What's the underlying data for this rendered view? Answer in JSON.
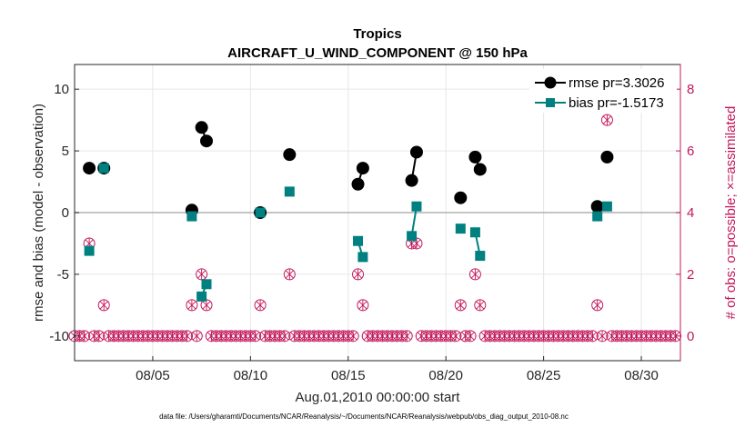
{
  "chart_data": {
    "type": "line",
    "title": "Tropics",
    "subtitle": "AIRCRAFT_U_WIND_COMPONENT @ 150 hPa",
    "xlabel": "Aug.01,2010 00:00:00 start",
    "ylabel": "rmse and bias (model - observation)",
    "y2label": "# of obs: o=possible; ×=assimilated",
    "xlim": [
      1,
      32
    ],
    "ylim": [
      -12,
      12
    ],
    "y2lim": [
      -0.8,
      8.8
    ],
    "grid": true,
    "legend_position": "top-right",
    "xticks": [
      {
        "value": 5,
        "label": "08/05"
      },
      {
        "value": 10,
        "label": "08/10"
      },
      {
        "value": 15,
        "label": "08/15"
      },
      {
        "value": 20,
        "label": "08/20"
      },
      {
        "value": 25,
        "label": "08/25"
      },
      {
        "value": 30,
        "label": "08/30"
      }
    ],
    "yticks": [
      -10,
      -5,
      0,
      5,
      10
    ],
    "y2ticks": [
      0,
      2,
      4,
      6,
      8
    ],
    "series": [
      {
        "name": "rmse pr=3.3026",
        "color": "#000000",
        "marker": "circle",
        "segments": [
          [
            [
              1.75,
              3.6
            ]
          ],
          [
            [
              2.5,
              3.6
            ]
          ],
          [
            [
              7.0,
              0.2
            ]
          ],
          [
            [
              7.5,
              6.9
            ],
            [
              7.75,
              5.8
            ]
          ],
          [
            [
              10.5,
              0.0
            ]
          ],
          [
            [
              12.0,
              4.7
            ]
          ],
          [
            [
              15.5,
              2.3
            ],
            [
              15.75,
              3.6
            ]
          ],
          [
            [
              18.25,
              2.6
            ],
            [
              18.5,
              4.9
            ]
          ],
          [
            [
              20.75,
              1.2
            ]
          ],
          [
            [
              21.5,
              4.5
            ],
            [
              21.75,
              3.5
            ]
          ],
          [
            [
              27.75,
              0.5
            ]
          ],
          [
            [
              28.25,
              4.5
            ]
          ]
        ]
      },
      {
        "name": "bias pr=-1.5173",
        "color": "#008080",
        "marker": "square",
        "segments": [
          [
            [
              1.75,
              -3.1
            ]
          ],
          [
            [
              2.5,
              3.6
            ]
          ],
          [
            [
              7.0,
              -0.3
            ]
          ],
          [
            [
              7.5,
              -6.8
            ],
            [
              7.75,
              -5.8
            ]
          ],
          [
            [
              10.5,
              0.0
            ]
          ],
          [
            [
              12.0,
              1.7
            ]
          ],
          [
            [
              15.5,
              -2.3
            ],
            [
              15.75,
              -3.6
            ]
          ],
          [
            [
              18.25,
              -1.9
            ],
            [
              18.5,
              0.5
            ]
          ],
          [
            [
              20.75,
              -1.3
            ]
          ],
          [
            [
              21.5,
              -1.6
            ],
            [
              21.75,
              -3.5
            ]
          ],
          [
            [
              27.75,
              -0.3
            ]
          ],
          [
            [
              28.25,
              0.5
            ]
          ]
        ]
      }
    ],
    "obs_possible": [
      [
        1.0,
        0
      ],
      [
        1.25,
        0
      ],
      [
        1.5,
        0
      ],
      [
        1.75,
        3
      ],
      [
        2.0,
        0
      ],
      [
        2.25,
        0
      ],
      [
        2.5,
        1
      ],
      [
        2.75,
        0
      ],
      [
        3.0,
        0
      ],
      [
        3.25,
        0
      ],
      [
        3.5,
        0
      ],
      [
        3.75,
        0
      ],
      [
        4.0,
        0
      ],
      [
        4.25,
        0
      ],
      [
        4.5,
        0
      ],
      [
        4.75,
        0
      ],
      [
        5.0,
        0
      ],
      [
        5.25,
        0
      ],
      [
        5.5,
        0
      ],
      [
        5.75,
        0
      ],
      [
        6.0,
        0
      ],
      [
        6.25,
        0
      ],
      [
        6.5,
        0
      ],
      [
        6.75,
        0
      ],
      [
        7.0,
        1
      ],
      [
        7.25,
        0
      ],
      [
        7.5,
        2
      ],
      [
        7.75,
        1
      ],
      [
        8.0,
        0
      ],
      [
        8.25,
        0
      ],
      [
        8.5,
        0
      ],
      [
        8.75,
        0
      ],
      [
        9.0,
        0
      ],
      [
        9.25,
        0
      ],
      [
        9.5,
        0
      ],
      [
        9.75,
        0
      ],
      [
        10.0,
        0
      ],
      [
        10.25,
        0
      ],
      [
        10.5,
        1
      ],
      [
        10.75,
        0
      ],
      [
        11.0,
        0
      ],
      [
        11.25,
        0
      ],
      [
        11.5,
        0
      ],
      [
        11.75,
        0
      ],
      [
        12.0,
        2
      ],
      [
        12.25,
        0
      ],
      [
        12.5,
        0
      ],
      [
        12.75,
        0
      ],
      [
        13.0,
        0
      ],
      [
        13.25,
        0
      ],
      [
        13.5,
        0
      ],
      [
        13.75,
        0
      ],
      [
        14.0,
        0
      ],
      [
        14.25,
        0
      ],
      [
        14.5,
        0
      ],
      [
        14.75,
        0
      ],
      [
        15.0,
        0
      ],
      [
        15.25,
        0
      ],
      [
        15.5,
        2
      ],
      [
        15.75,
        1
      ],
      [
        16.0,
        0
      ],
      [
        16.25,
        0
      ],
      [
        16.5,
        0
      ],
      [
        16.75,
        0
      ],
      [
        17.0,
        0
      ],
      [
        17.25,
        0
      ],
      [
        17.5,
        0
      ],
      [
        17.75,
        0
      ],
      [
        18.0,
        0
      ],
      [
        18.25,
        3
      ],
      [
        18.5,
        3
      ],
      [
        18.75,
        0
      ],
      [
        19.0,
        0
      ],
      [
        19.25,
        0
      ],
      [
        19.5,
        0
      ],
      [
        19.75,
        0
      ],
      [
        20.0,
        0
      ],
      [
        20.25,
        0
      ],
      [
        20.5,
        0
      ],
      [
        20.75,
        1
      ],
      [
        21.0,
        0
      ],
      [
        21.25,
        0
      ],
      [
        21.5,
        2
      ],
      [
        21.75,
        1
      ],
      [
        22.0,
        0
      ],
      [
        22.25,
        0
      ],
      [
        22.5,
        0
      ],
      [
        22.75,
        0
      ],
      [
        23.0,
        0
      ],
      [
        23.25,
        0
      ],
      [
        23.5,
        0
      ],
      [
        23.75,
        0
      ],
      [
        24.0,
        0
      ],
      [
        24.25,
        0
      ],
      [
        24.5,
        0
      ],
      [
        24.75,
        0
      ],
      [
        25.0,
        0
      ],
      [
        25.25,
        0
      ],
      [
        25.5,
        0
      ],
      [
        25.75,
        0
      ],
      [
        26.0,
        0
      ],
      [
        26.25,
        0
      ],
      [
        26.5,
        0
      ],
      [
        26.75,
        0
      ],
      [
        27.0,
        0
      ],
      [
        27.25,
        0
      ],
      [
        27.5,
        0
      ],
      [
        27.75,
        1
      ],
      [
        28.0,
        0
      ],
      [
        28.25,
        7
      ],
      [
        28.5,
        0
      ],
      [
        28.75,
        0
      ],
      [
        29.0,
        0
      ],
      [
        29.25,
        0
      ],
      [
        29.5,
        0
      ],
      [
        29.75,
        0
      ],
      [
        30.0,
        0
      ],
      [
        30.25,
        0
      ],
      [
        30.5,
        0
      ],
      [
        30.75,
        0
      ],
      [
        31.0,
        0
      ],
      [
        31.25,
        0
      ],
      [
        31.5,
        0
      ],
      [
        31.75,
        0
      ]
    ],
    "obs_assimilated": "same as possible",
    "colors": {
      "rmse": "#000000",
      "bias": "#008080",
      "obs": "#c2185b",
      "zero_line": "#b0b0b0"
    }
  },
  "footer": "data file: /Users/gharamti/Documents/NCAR/Reanalysis/~/Documents/NCAR/Reanalysis/webpub/obs_diag_output_2010-08.nc"
}
